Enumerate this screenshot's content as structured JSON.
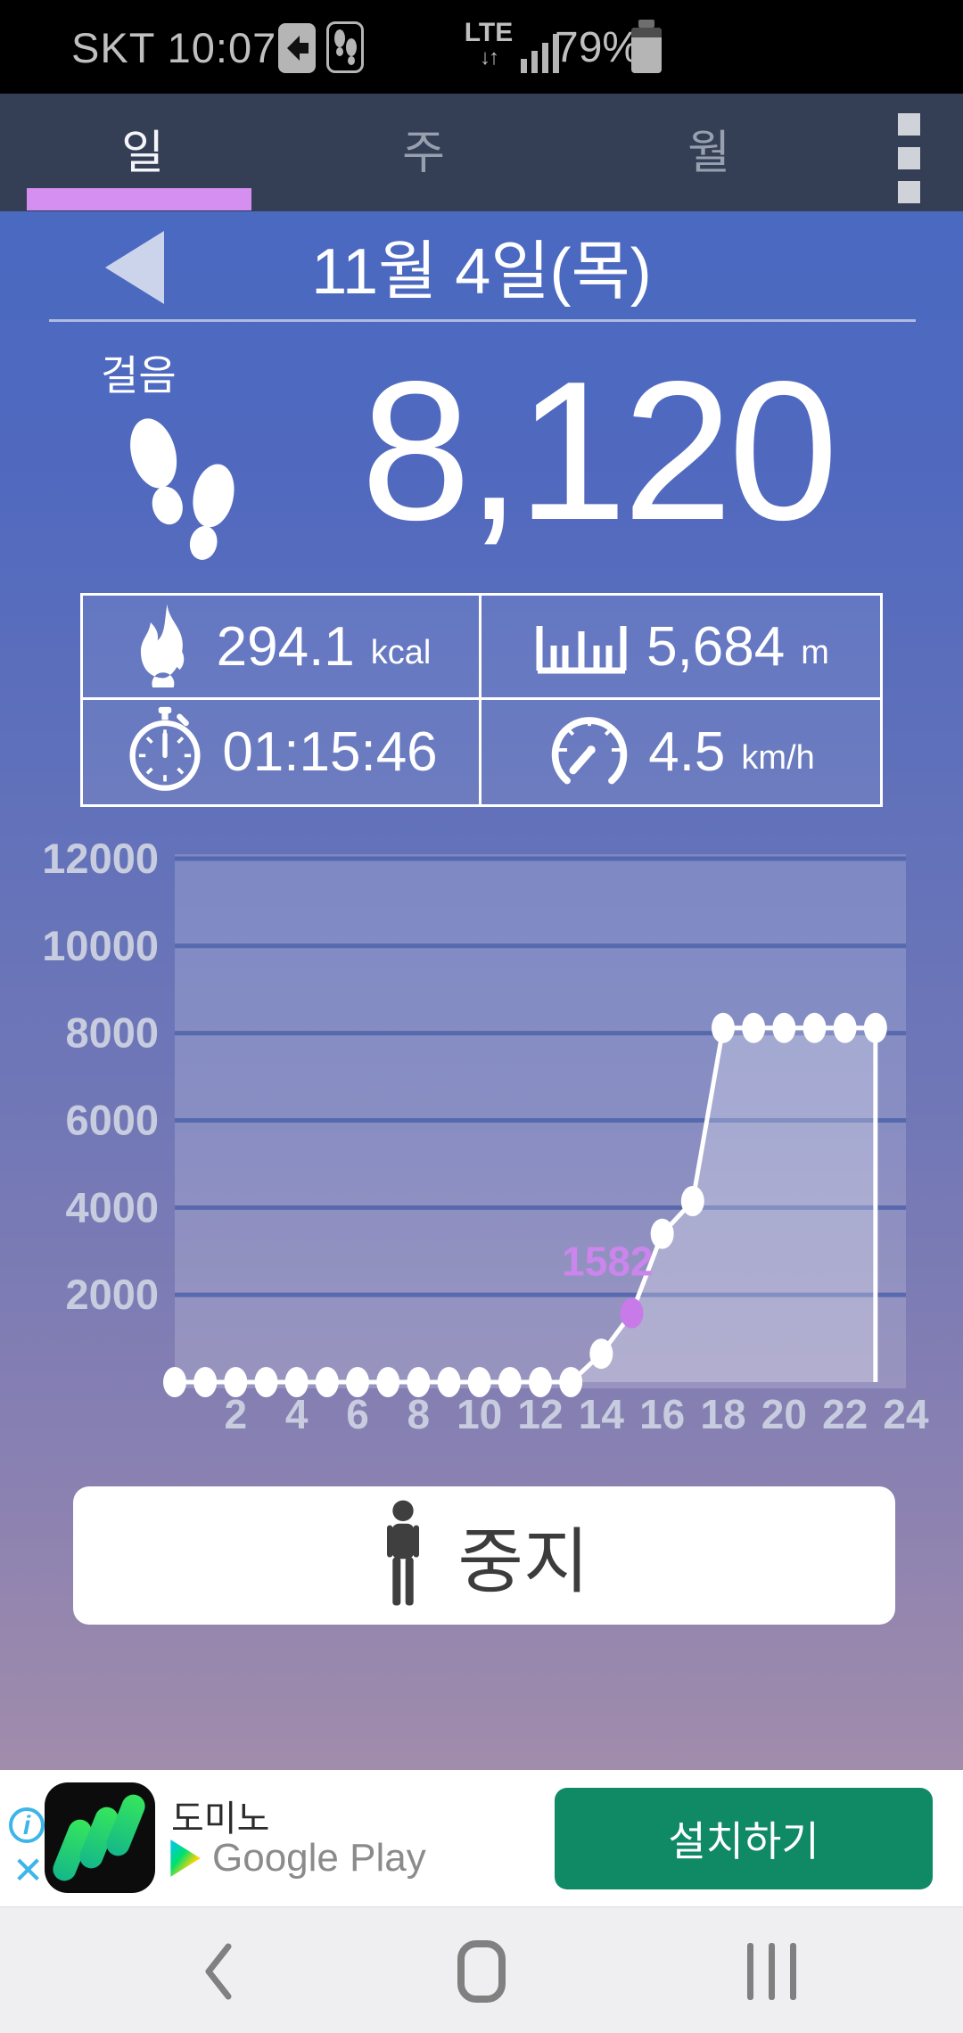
{
  "status_bar": {
    "carrier_time": "SKT 10:07",
    "network": "LTE",
    "battery": "79%"
  },
  "tabs": {
    "items": [
      {
        "label": "일",
        "active": true
      },
      {
        "label": "주",
        "active": false
      },
      {
        "label": "월",
        "active": false
      }
    ]
  },
  "header": {
    "title": "11월 4일(목)"
  },
  "summary": {
    "label": "걸음",
    "steps": "8,120"
  },
  "stats": [
    {
      "icon": "flame-icon",
      "value": "294.1",
      "unit": "kcal"
    },
    {
      "icon": "ruler-icon",
      "value": "5,684",
      "unit": "m"
    },
    {
      "icon": "stopwatch-icon",
      "value": "01:15:46",
      "unit": ""
    },
    {
      "icon": "speedometer-icon",
      "value": "4.5",
      "unit": "km/h"
    }
  ],
  "chart_data": {
    "type": "line",
    "x": [
      0,
      1,
      2,
      3,
      4,
      5,
      6,
      7,
      8,
      9,
      10,
      11,
      12,
      13,
      14,
      15,
      16,
      17,
      18,
      19,
      20,
      21,
      22,
      23
    ],
    "values": [
      0,
      0,
      0,
      0,
      0,
      0,
      0,
      0,
      0,
      0,
      0,
      0,
      0,
      0,
      650,
      1582,
      3400,
      4150,
      8120,
      8120,
      8120,
      8120,
      8120,
      8120
    ],
    "highlight": {
      "x": 15,
      "value": 1582,
      "label": "1582",
      "color": "#c77ae8",
      "label_color": "#cb85ec"
    },
    "ylim": [
      0,
      12000
    ],
    "yticks": [
      2000,
      4000,
      6000,
      8000,
      10000,
      12000
    ],
    "xticks": [
      2,
      4,
      6,
      8,
      10,
      12,
      14,
      16,
      18,
      20,
      22,
      24
    ],
    "series_color": "#ffffff",
    "grid": "on",
    "xlabel": "",
    "ylabel": ""
  },
  "stop_button": {
    "label": "중지"
  },
  "ad": {
    "info": "i",
    "close": "✕",
    "app_name": "도미노",
    "store": "Google Play",
    "cta": "설치하기"
  },
  "colors": {
    "tab_bar": "#343e55",
    "accent_underline": "#d58ff0",
    "header_blue": "#4a69c1",
    "highlight_purple": "#c77ae8",
    "install_green": "#0f8a64"
  }
}
